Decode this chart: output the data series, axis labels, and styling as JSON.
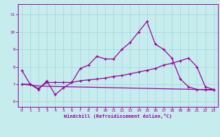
{
  "xlabel": "Windchill (Refroidissement éolien,°C)",
  "xlim": [
    -0.5,
    23.5
  ],
  "ylim": [
    5.7,
    11.6
  ],
  "yticks": [
    6,
    7,
    8,
    9,
    10,
    11
  ],
  "xticks": [
    0,
    1,
    2,
    3,
    4,
    5,
    6,
    7,
    8,
    9,
    10,
    11,
    12,
    13,
    14,
    15,
    16,
    17,
    18,
    19,
    20,
    21,
    22,
    23
  ],
  "line_color": "#990099",
  "bg_color": "#c6ecee",
  "grid_color": "#a8d8da",
  "line1_x": [
    0,
    1,
    2,
    3,
    4,
    5,
    6,
    7,
    8,
    9,
    10,
    11,
    12,
    13,
    14,
    15,
    16,
    17,
    18,
    19,
    20,
    21,
    22,
    23
  ],
  "line1_y": [
    7.8,
    7.0,
    6.7,
    7.2,
    6.4,
    6.8,
    7.1,
    7.9,
    8.1,
    8.6,
    8.45,
    8.45,
    9.0,
    9.4,
    10.0,
    10.6,
    9.3,
    9.0,
    8.5,
    7.3,
    6.85,
    6.7,
    6.7,
    6.7
  ],
  "line2_x": [
    0,
    1,
    2,
    3,
    4,
    5,
    6,
    7,
    8,
    9,
    10,
    11,
    12,
    13,
    14,
    15,
    16,
    17,
    18,
    19,
    20,
    21,
    22,
    23
  ],
  "line2_y": [
    7.0,
    7.0,
    6.75,
    7.1,
    7.1,
    7.1,
    7.1,
    7.2,
    7.25,
    7.3,
    7.35,
    7.45,
    7.5,
    7.6,
    7.7,
    7.8,
    7.9,
    8.1,
    8.2,
    8.35,
    8.5,
    8.0,
    6.85,
    6.7
  ],
  "line3_x": [
    0,
    1,
    2,
    3,
    4,
    5,
    6,
    7,
    8,
    9,
    10,
    11,
    12,
    13,
    14,
    15,
    16,
    17,
    18,
    19,
    20,
    21,
    22,
    23
  ],
  "line3_y": [
    7.0,
    6.95,
    6.9,
    6.88,
    6.87,
    6.86,
    6.85,
    6.84,
    6.83,
    6.82,
    6.81,
    6.8,
    6.79,
    6.78,
    6.77,
    6.76,
    6.75,
    6.74,
    6.73,
    6.72,
    6.71,
    6.7,
    6.68,
    6.67
  ]
}
